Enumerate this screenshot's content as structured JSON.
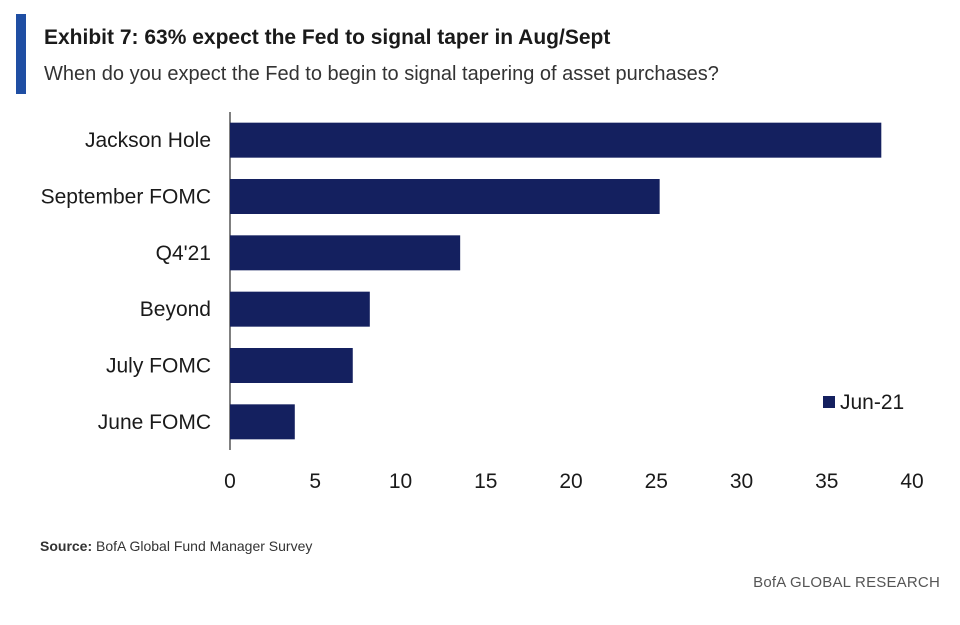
{
  "header": {
    "title": "Exhibit 7: 63% expect the Fed to signal taper in Aug/Sept",
    "subtitle": "When do you expect the Fed to begin to signal tapering of asset purchases?"
  },
  "footer": {
    "source_label": "Source:",
    "source_text": "BofA Global Fund Manager Survey",
    "brand": "BofA GLOBAL RESEARCH"
  },
  "colors": {
    "accent": "#1f4ea3",
    "bar": "#14205f"
  },
  "chart_data": {
    "type": "bar",
    "orientation": "horizontal",
    "categories": [
      "Jackson Hole",
      "September FOMC",
      "Q4'21",
      "Beyond",
      "July FOMC",
      "June FOMC"
    ],
    "series": [
      {
        "name": "Jun-21",
        "values": [
          38.2,
          25.2,
          13.5,
          8.2,
          7.2,
          3.8
        ]
      }
    ],
    "xlim": [
      0,
      40
    ],
    "xticks": [
      0,
      5,
      10,
      15,
      20,
      25,
      30,
      35,
      40
    ],
    "grid": false,
    "legend_position": "right"
  }
}
